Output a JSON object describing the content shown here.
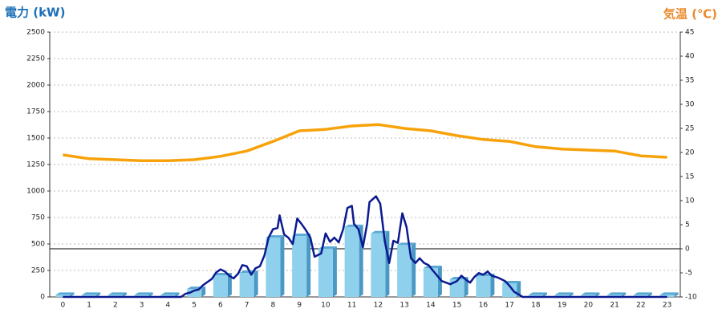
{
  "chart_data": {
    "type": "combo",
    "title": "電力 (kW)",
    "y2_title": "気温 (℃)",
    "categories": [
      "0",
      "1",
      "2",
      "3",
      "4",
      "5",
      "6",
      "7",
      "8",
      "9",
      "10",
      "11",
      "12",
      "13",
      "14",
      "15",
      "16",
      "17",
      "18",
      "19",
      "20",
      "21",
      "22",
      "23"
    ],
    "xlim": [
      -0.5,
      23.5
    ],
    "ylim": [
      0,
      2500
    ],
    "yticks": [
      0,
      250,
      500,
      750,
      1000,
      1250,
      1500,
      1750,
      2000,
      2250,
      2500
    ],
    "y2lim": [
      -10,
      45
    ],
    "y2ticks": [
      -10,
      -5,
      0,
      5,
      10,
      15,
      20,
      25,
      30,
      35,
      40,
      45
    ],
    "grid": true,
    "series": [
      {
        "type": "bar",
        "color": "#8fd0ec",
        "values": [
          20,
          20,
          20,
          20,
          20,
          75,
          205,
          227,
          560,
          575,
          455,
          660,
          600,
          490,
          273,
          167,
          197,
          129,
          20,
          20,
          20,
          20,
          20,
          20
        ]
      },
      {
        "type": "line",
        "color": "#0b1a8f",
        "x": [
          0,
          4.5,
          4.67,
          4.83,
          5,
          5.17,
          5.33,
          5.5,
          5.67,
          5.83,
          6,
          6.17,
          6.33,
          6.5,
          6.67,
          6.83,
          7,
          7.17,
          7.33,
          7.5,
          7.67,
          7.83,
          8,
          8.17,
          8.25,
          8.42,
          8.58,
          8.75,
          8.92,
          9.08,
          9.25,
          9.42,
          9.58,
          9.83,
          10,
          10.17,
          10.33,
          10.5,
          10.67,
          10.83,
          11,
          11.08,
          11.25,
          11.42,
          11.58,
          11.67,
          11.92,
          12.08,
          12.25,
          12.42,
          12.58,
          12.75,
          12.92,
          13.08,
          13.25,
          13.42,
          13.58,
          13.75,
          13.92,
          14.08,
          14.42,
          14.75,
          15,
          15.17,
          15.33,
          15.5,
          15.67,
          15.83,
          16,
          16.17,
          16.33,
          16.58,
          16.83,
          17,
          17.17,
          17.5,
          23
        ],
        "values": [
          0,
          0,
          30,
          40,
          60,
          70,
          110,
          140,
          170,
          230,
          260,
          240,
          200,
          175,
          220,
          300,
          290,
          210,
          270,
          290,
          390,
          560,
          640,
          650,
          770,
          590,
          560,
          500,
          740,
          690,
          630,
          560,
          380,
          410,
          600,
          520,
          560,
          515,
          640,
          840,
          860,
          690,
          640,
          470,
          690,
          895,
          950,
          880,
          530,
          320,
          530,
          510,
          790,
          660,
          365,
          320,
          365,
          320,
          300,
          250,
          150,
          120,
          150,
          200,
          165,
          135,
          190,
          225,
          210,
          240,
          200,
          180,
          150,
          105,
          50,
          0,
          0
        ]
      },
      {
        "type": "line",
        "axis": "y2",
        "color": "#f7a20a",
        "values": [
          19.5,
          18.7,
          18.5,
          18.3,
          18.3,
          18.5,
          19.2,
          20.3,
          22.3,
          24.5,
          24.8,
          25.5,
          25.8,
          25,
          24.5,
          23.5,
          22.7,
          22.3,
          21.2,
          20.7,
          20.5,
          20.3,
          19.3,
          19
        ]
      }
    ]
  }
}
